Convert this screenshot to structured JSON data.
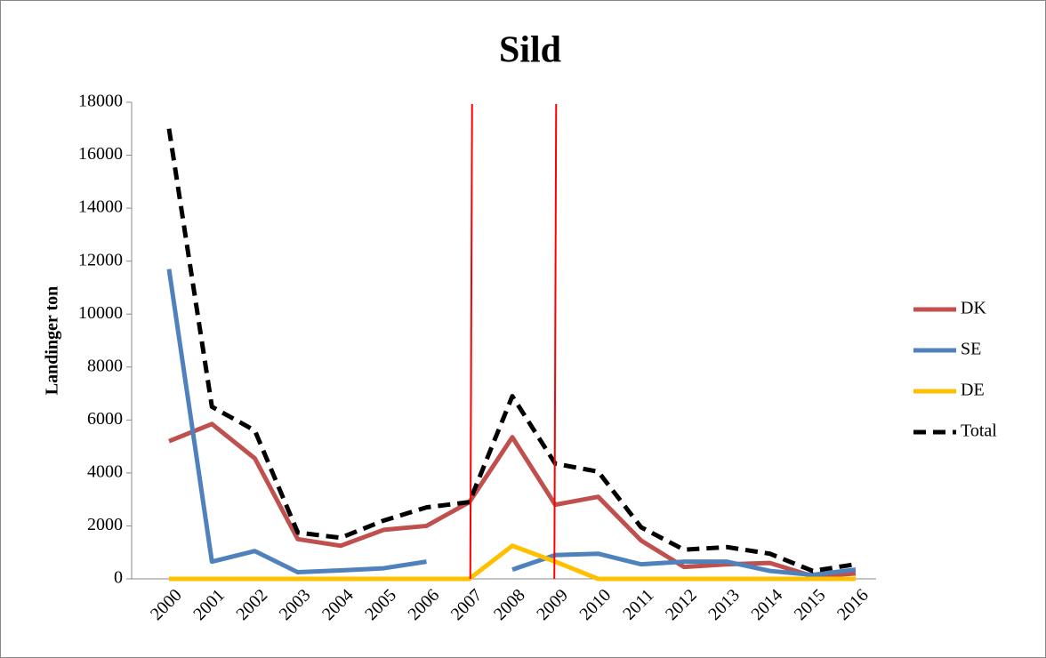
{
  "chart_data": {
    "type": "line",
    "title": "Sild",
    "y_label": "Landinger ton",
    "categories": [
      "2000",
      "2001",
      "2002",
      "2003",
      "2004",
      "2005",
      "2006",
      "2007",
      "2008",
      "2009",
      "2010",
      "2011",
      "2012",
      "2013",
      "2014",
      "2015",
      "2016"
    ],
    "series": [
      {
        "name": "DK",
        "color": "#c0504d",
        "dash": false,
        "values": [
          5200,
          5850,
          4550,
          1500,
          1250,
          1850,
          2000,
          2900,
          5350,
          2800,
          3100,
          1450,
          450,
          550,
          600,
          100,
          200
        ]
      },
      {
        "name": "SE",
        "color": "#4f81bd",
        "dash": false,
        "values": [
          11700,
          650,
          1050,
          250,
          320,
          400,
          650,
          null,
          350,
          900,
          950,
          550,
          650,
          650,
          300,
          150,
          350
        ]
      },
      {
        "name": "DE",
        "color": "#ffc000",
        "dash": false,
        "values": [
          0,
          0,
          0,
          0,
          0,
          0,
          0,
          0,
          1250,
          650,
          0,
          0,
          0,
          0,
          0,
          0,
          0
        ]
      },
      {
        "name": "Total",
        "color": "#000000",
        "dash": true,
        "values": [
          17000,
          6500,
          5600,
          1750,
          1550,
          2200,
          2700,
          2900,
          6900,
          4350,
          4050,
          1950,
          1100,
          1200,
          950,
          300,
          550
        ]
      }
    ],
    "markers": {
      "color": "#ff0000",
      "at": [
        "2007",
        "2009"
      ]
    },
    "ylim": [
      0,
      18000
    ],
    "yticks": [
      0,
      2000,
      4000,
      6000,
      8000,
      10000,
      12000,
      14000,
      16000,
      18000
    ],
    "legend": "right"
  }
}
